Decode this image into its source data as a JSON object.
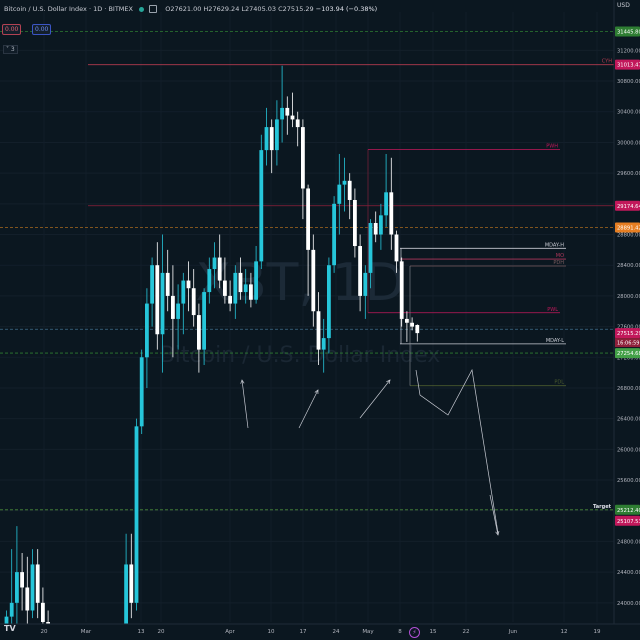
{
  "header": {
    "symbol": "Bitcoin / U.S. Dollar Index · 1D · BITMEX",
    "open": "O27621.00",
    "high": "H27629.24",
    "low": "L27405.03",
    "close": "C27515.29",
    "change": "−103.94 (−0.38%)"
  },
  "indicators": {
    "pill_red": "0.00",
    "pill_blue": "0.00",
    "collapse_label": "˅ 3"
  },
  "axis": {
    "currency": "USD",
    "flash_glyph": "⚡",
    "logo": "TV"
  },
  "watermark": {
    "line1": "XBT, 1D",
    "line2": "Bitcoin / U.S. Dollar Index"
  },
  "colors": {
    "up": "#26c6da",
    "down": "#ffffff",
    "bg": "#0b1720"
  },
  "chart_data": {
    "type": "candlestick",
    "title": "Bitcoin / U.S. Dollar Index · 1D · BITMEX",
    "ylim": [
      23750,
      31700
    ],
    "y_ticks": [
      24000,
      24400,
      24800,
      25200,
      25600,
      26000,
      26400,
      26800,
      27200,
      27600,
      28000,
      28400,
      28800,
      29200,
      29600,
      30000,
      30400,
      30800,
      31200
    ],
    "x_ticks": [
      "20",
      "Mar",
      "13",
      "20",
      "Apr",
      "10",
      "17",
      "24",
      "May",
      "8",
      "15",
      "22",
      "Jun",
      "12",
      "19"
    ],
    "candles_up_color": "#26c6da",
    "candles_down_color": "#ffffff",
    "candles": [
      {
        "i": 0,
        "o": 23650,
        "h": 23900,
        "l": 23500,
        "c": 23820
      },
      {
        "i": 1,
        "o": 23820,
        "h": 24700,
        "l": 23600,
        "c": 24000
      },
      {
        "i": 2,
        "o": 24000,
        "h": 25000,
        "l": 23700,
        "c": 24400
      },
      {
        "i": 3,
        "o": 24400,
        "h": 24650,
        "l": 23900,
        "c": 24200
      },
      {
        "i": 4,
        "o": 24200,
        "h": 24600,
        "l": 23700,
        "c": 23900
      },
      {
        "i": 5,
        "o": 23900,
        "h": 24700,
        "l": 23800,
        "c": 24500
      },
      {
        "i": 6,
        "o": 24500,
        "h": 24700,
        "l": 23800,
        "c": 24000
      },
      {
        "i": 7,
        "o": 24000,
        "h": 24200,
        "l": 23600,
        "c": 23750
      },
      {
        "i": 8,
        "o": 23750,
        "h": 23900,
        "l": 23500,
        "c": 23600
      },
      {
        "i": 23,
        "o": 23600,
        "h": 24900,
        "l": 23500,
        "c": 24500
      },
      {
        "i": 24,
        "o": 24500,
        "h": 24900,
        "l": 23800,
        "c": 24000
      },
      {
        "i": 25,
        "o": 24000,
        "h": 26400,
        "l": 23900,
        "c": 26300
      },
      {
        "i": 26,
        "o": 26300,
        "h": 27300,
        "l": 26200,
        "c": 27200
      },
      {
        "i": 27,
        "o": 27200,
        "h": 28100,
        "l": 26800,
        "c": 27900
      },
      {
        "i": 28,
        "o": 27900,
        "h": 28500,
        "l": 27600,
        "c": 28400
      },
      {
        "i": 29,
        "o": 28400,
        "h": 28700,
        "l": 27300,
        "c": 27500
      },
      {
        "i": 30,
        "o": 27500,
        "h": 28800,
        "l": 27000,
        "c": 28300
      },
      {
        "i": 31,
        "o": 28300,
        "h": 28600,
        "l": 27800,
        "c": 28000
      },
      {
        "i": 32,
        "o": 28000,
        "h": 28400,
        "l": 27200,
        "c": 27700
      },
      {
        "i": 33,
        "o": 27700,
        "h": 28150,
        "l": 27300,
        "c": 27900
      },
      {
        "i": 34,
        "o": 27900,
        "h": 28300,
        "l": 27500,
        "c": 28200
      },
      {
        "i": 35,
        "o": 28200,
        "h": 28450,
        "l": 27800,
        "c": 28100
      },
      {
        "i": 36,
        "o": 28100,
        "h": 28350,
        "l": 27600,
        "c": 27750
      },
      {
        "i": 37,
        "o": 27750,
        "h": 27900,
        "l": 27000,
        "c": 27300
      },
      {
        "i": 38,
        "o": 27300,
        "h": 28100,
        "l": 27100,
        "c": 28050
      },
      {
        "i": 39,
        "o": 28050,
        "h": 28500,
        "l": 27900,
        "c": 28350
      },
      {
        "i": 40,
        "o": 28350,
        "h": 28700,
        "l": 28100,
        "c": 28500
      },
      {
        "i": 41,
        "o": 28500,
        "h": 28800,
        "l": 28100,
        "c": 28200
      },
      {
        "i": 42,
        "o": 28200,
        "h": 28500,
        "l": 27900,
        "c": 28000
      },
      {
        "i": 43,
        "o": 28000,
        "h": 28200,
        "l": 27800,
        "c": 27900
      },
      {
        "i": 44,
        "o": 27900,
        "h": 28400,
        "l": 27700,
        "c": 28300
      },
      {
        "i": 45,
        "o": 28300,
        "h": 28500,
        "l": 27950,
        "c": 28050
      },
      {
        "i": 46,
        "o": 28050,
        "h": 28350,
        "l": 27900,
        "c": 28150
      },
      {
        "i": 47,
        "o": 28150,
        "h": 28300,
        "l": 27850,
        "c": 27950
      },
      {
        "i": 48,
        "o": 27950,
        "h": 28650,
        "l": 27900,
        "c": 28450
      },
      {
        "i": 49,
        "o": 28450,
        "h": 30100,
        "l": 28350,
        "c": 29900
      },
      {
        "i": 50,
        "o": 29900,
        "h": 30450,
        "l": 29700,
        "c": 30200
      },
      {
        "i": 51,
        "o": 30200,
        "h": 30300,
        "l": 29600,
        "c": 29900
      },
      {
        "i": 52,
        "o": 29900,
        "h": 30550,
        "l": 29700,
        "c": 30300
      },
      {
        "i": 53,
        "o": 30300,
        "h": 31000,
        "l": 30000,
        "c": 30450
      },
      {
        "i": 54,
        "o": 30450,
        "h": 30600,
        "l": 30100,
        "c": 30350
      },
      {
        "i": 55,
        "o": 30350,
        "h": 30650,
        "l": 30200,
        "c": 30300
      },
      {
        "i": 56,
        "o": 30300,
        "h": 30400,
        "l": 29950,
        "c": 30200
      },
      {
        "i": 57,
        "o": 30200,
        "h": 30300,
        "l": 29000,
        "c": 29400
      },
      {
        "i": 58,
        "o": 29400,
        "h": 29450,
        "l": 28000,
        "c": 28600
      },
      {
        "i": 59,
        "o": 28600,
        "h": 28800,
        "l": 27600,
        "c": 27800
      },
      {
        "i": 60,
        "o": 27800,
        "h": 28050,
        "l": 27100,
        "c": 27300
      },
      {
        "i": 61,
        "o": 27300,
        "h": 27700,
        "l": 27000,
        "c": 27450
      },
      {
        "i": 62,
        "o": 27450,
        "h": 28500,
        "l": 27250,
        "c": 28400
      },
      {
        "i": 63,
        "o": 28400,
        "h": 29300,
        "l": 28300,
        "c": 29200
      },
      {
        "i": 64,
        "o": 29200,
        "h": 29850,
        "l": 28800,
        "c": 29450
      },
      {
        "i": 65,
        "o": 29450,
        "h": 29800,
        "l": 29100,
        "c": 29500
      },
      {
        "i": 66,
        "o": 29500,
        "h": 29600,
        "l": 29000,
        "c": 29250
      },
      {
        "i": 67,
        "o": 29250,
        "h": 29400,
        "l": 28500,
        "c": 28650
      },
      {
        "i": 68,
        "o": 28650,
        "h": 28800,
        "l": 27800,
        "c": 28000
      },
      {
        "i": 69,
        "o": 28000,
        "h": 28400,
        "l": 27700,
        "c": 28300
      },
      {
        "i": 70,
        "o": 28300,
        "h": 29000,
        "l": 28100,
        "c": 28950
      },
      {
        "i": 71,
        "o": 28950,
        "h": 29100,
        "l": 28700,
        "c": 28800
      },
      {
        "i": 72,
        "o": 28800,
        "h": 29200,
        "l": 28600,
        "c": 29050
      },
      {
        "i": 73,
        "o": 29050,
        "h": 29850,
        "l": 28900,
        "c": 29350
      },
      {
        "i": 74,
        "o": 29350,
        "h": 29800,
        "l": 28600,
        "c": 28800
      },
      {
        "i": 75,
        "o": 28800,
        "h": 28850,
        "l": 28300,
        "c": 28450
      },
      {
        "i": 76,
        "o": 28450,
        "h": 28500,
        "l": 27600,
        "c": 27700
      },
      {
        "i": 77,
        "o": 27700,
        "h": 27800,
        "l": 27400,
        "c": 27650
      },
      {
        "i": 78,
        "o": 27650,
        "h": 27720,
        "l": 27550,
        "c": 27600
      },
      {
        "i": 79,
        "o": 27621,
        "h": 27629,
        "l": 27405,
        "c": 27515
      }
    ],
    "levels": [
      {
        "name": "top-dashed",
        "price": 31445.8,
        "color": "#2e7d32",
        "style": "dashed",
        "label": ""
      },
      {
        "name": "CYH",
        "price": 31013.47,
        "color": "#b23a4e",
        "style": "solid",
        "label": "CYH"
      },
      {
        "name": "PWH",
        "price": 29910,
        "color": "#c2185b",
        "style": "solid",
        "label": "PWH"
      },
      {
        "name": "red-level",
        "price": 29174.64,
        "color": "#8e1f3a",
        "style": "solid",
        "label": ""
      },
      {
        "name": "orange-dashed",
        "price": 28891.42,
        "color": "#a86a1e",
        "style": "dashed",
        "label": ""
      },
      {
        "name": "MDAYH",
        "price": 28620,
        "color": "#c9ccd4",
        "style": "solid",
        "label": "MDAY-H"
      },
      {
        "name": "MO",
        "price": 28480,
        "color": "#b0375b",
        "style": "solid",
        "label": "MO"
      },
      {
        "name": "PDH",
        "price": 28390,
        "color": "#7a5b5e",
        "style": "solid",
        "label": "PDH"
      },
      {
        "name": "PWL",
        "price": 27780,
        "color": "#c2185b",
        "style": "solid",
        "label": "PWL"
      },
      {
        "name": "mid-dashed",
        "price": 27565,
        "color": "#3f6d8a",
        "style": "dashed",
        "label": ""
      },
      {
        "name": "MDAYL",
        "price": 27375,
        "color": "#c9ccd4",
        "style": "solid",
        "label": "MDAY-L"
      },
      {
        "name": "green-dashed",
        "price": 27254.68,
        "color": "#2e7d32",
        "style": "dashed",
        "label": ""
      },
      {
        "name": "PDL",
        "price": 26830,
        "color": "#4a5a2e",
        "style": "solid",
        "label": "PDL"
      },
      {
        "name": "target",
        "price": 25212.4,
        "color": "#4a8a3a",
        "style": "dashed",
        "label": "Target"
      }
    ],
    "price_tags": [
      {
        "price": 31445.8,
        "text": "31445.80",
        "bg": "#2e7d32"
      },
      {
        "price": 31013.47,
        "text": "31013.47",
        "bg": "#c2185b"
      },
      {
        "price": 29174.64,
        "text": "29174.64",
        "bg": "#c2185b"
      },
      {
        "price": 28891.42,
        "text": "28891.42",
        "bg": "#e67e22"
      },
      {
        "price": 27515.29,
        "text": "27515.29",
        "bg": "#c2185b"
      },
      {
        "price": 27254.68,
        "text": "27254.68",
        "bg": "#43a047"
      },
      {
        "price": 25212.4,
        "text": "25212.40",
        "bg": "#2e7d32"
      },
      {
        "price": 25107.53,
        "text": "25107.53",
        "bg": "#c2185b"
      }
    ],
    "countdown": "16:06:59",
    "annotations": [
      "XBT, 1D",
      "Target"
    ]
  }
}
